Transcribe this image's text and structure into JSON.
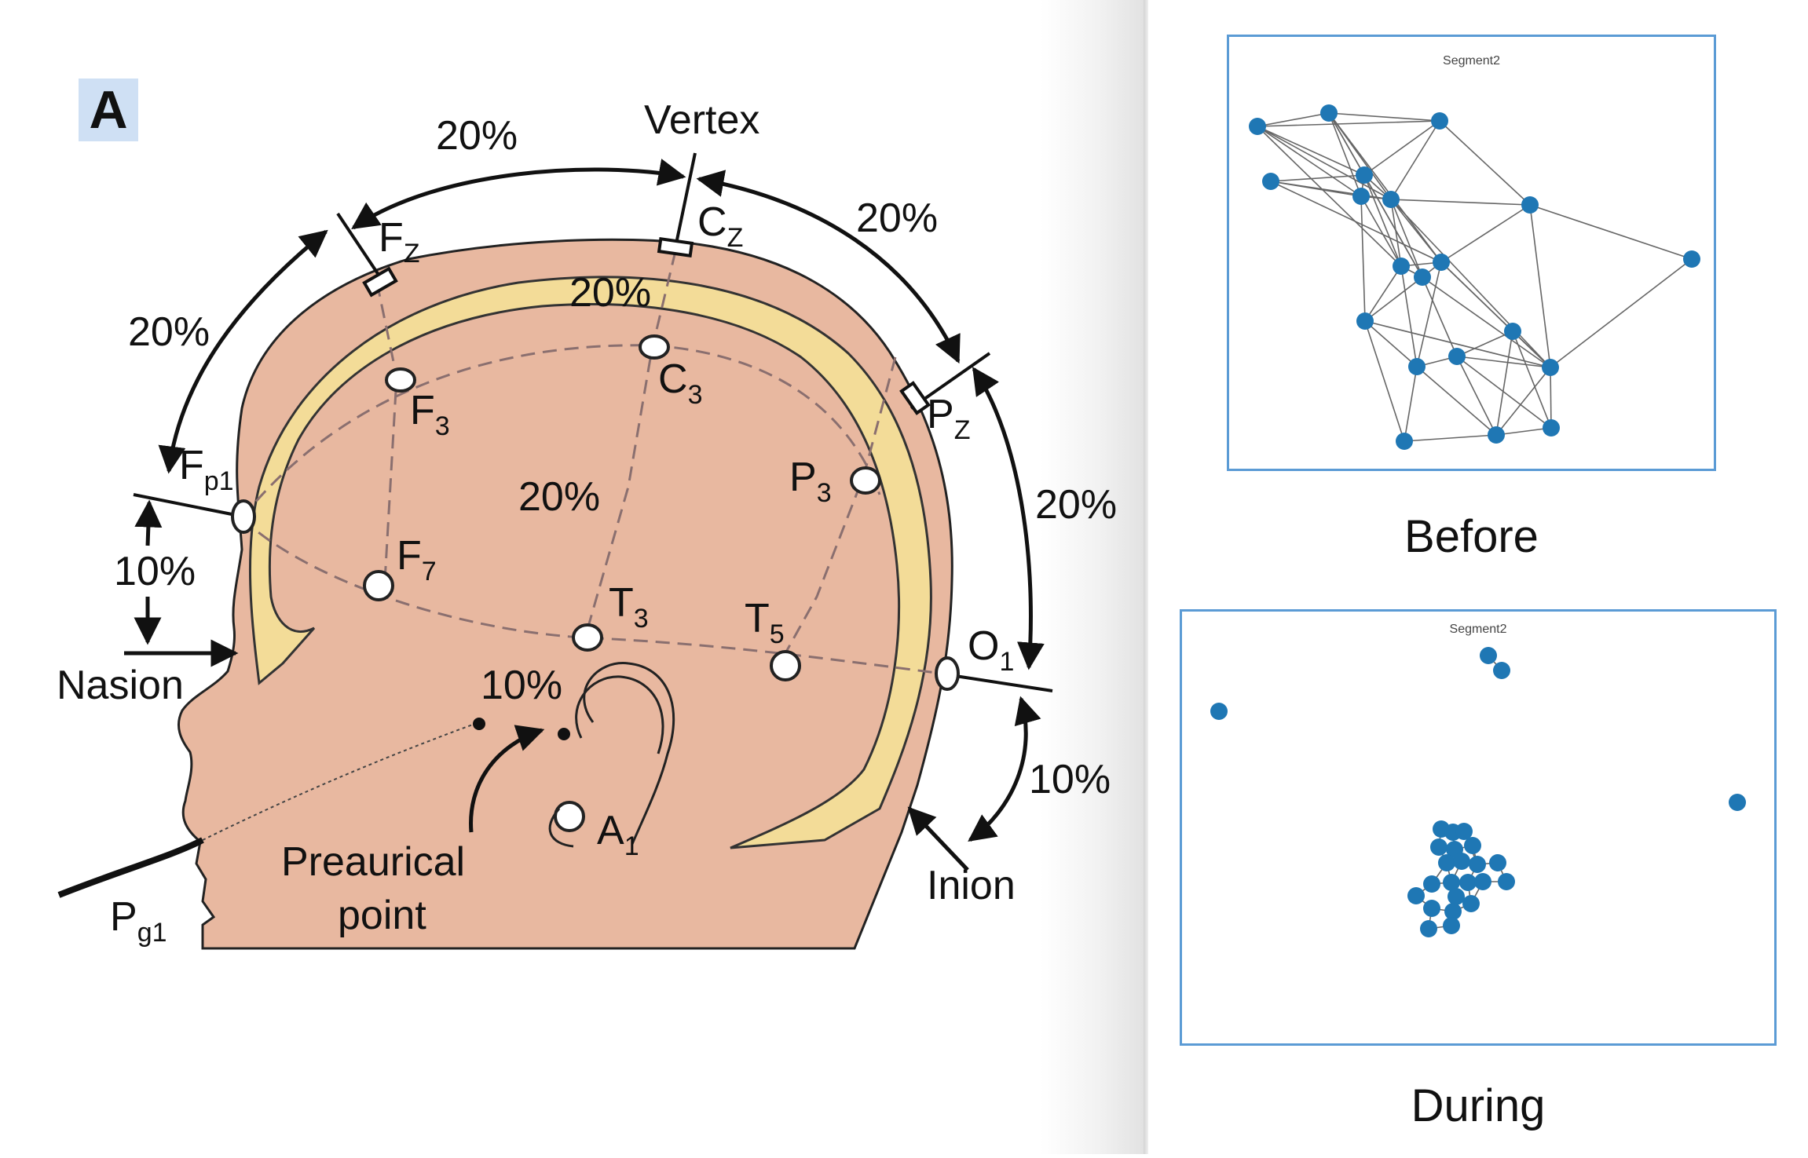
{
  "figure_label": "A",
  "diagram": {
    "vertex": "Vertex",
    "nasion": "Nasion",
    "inion": "Inion",
    "preauricular": [
      "Preaurical",
      "point"
    ],
    "percent_20": "20%",
    "percent_10": "10%",
    "electrodes": {
      "Fz": [
        "F",
        "Z"
      ],
      "Cz": [
        "C",
        "Z"
      ],
      "Pz": [
        "P",
        "Z"
      ],
      "Fp1": [
        "F",
        "p1"
      ],
      "F3": [
        "F",
        "3"
      ],
      "C3": [
        "C",
        "3"
      ],
      "P3": [
        "P",
        "3"
      ],
      "F7": [
        "F",
        "7"
      ],
      "T3": [
        "T",
        "3"
      ],
      "T5": [
        "T",
        "5"
      ],
      "O1": [
        "O",
        "1"
      ],
      "A1": [
        "A",
        "1"
      ],
      "Pg1": [
        "P",
        "g1"
      ]
    }
  },
  "panels": {
    "before": {
      "caption": "Before",
      "graph_title": "Segment2",
      "node_color": "#1f77b4",
      "edge_color": "#666666"
    },
    "during": {
      "caption": "During",
      "graph_title": "Segment2",
      "node_color": "#1f77b4",
      "edge_color": "#666666"
    }
  }
}
